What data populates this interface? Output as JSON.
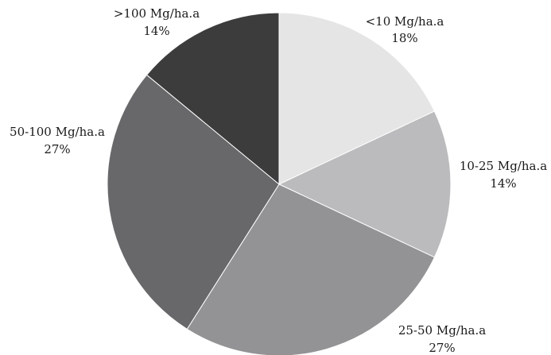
{
  "chart_data": {
    "type": "pie",
    "title": "",
    "start_angle_deg": 0,
    "direction": "clockwise",
    "slices": [
      {
        "label": "<10 Mg/ha.a",
        "value": 18,
        "pct": "18%",
        "color": "#e5e5e6"
      },
      {
        "label": "10-25 Mg/ha.a",
        "value": 14,
        "pct": "14%",
        "color": "#bbbbbd"
      },
      {
        "label": "25-50 Mg/ha.a",
        "value": 27,
        "pct": "27%",
        "color": "#939396"
      },
      {
        "label": "50-100 Mg/ha.a",
        "value": 27,
        "pct": "27%",
        "color": "#68686b"
      },
      {
        "label": ">100 Mg/ha.a",
        "value": 14,
        "pct": "14%",
        "color": "#3c3c3d"
      }
    ]
  }
}
